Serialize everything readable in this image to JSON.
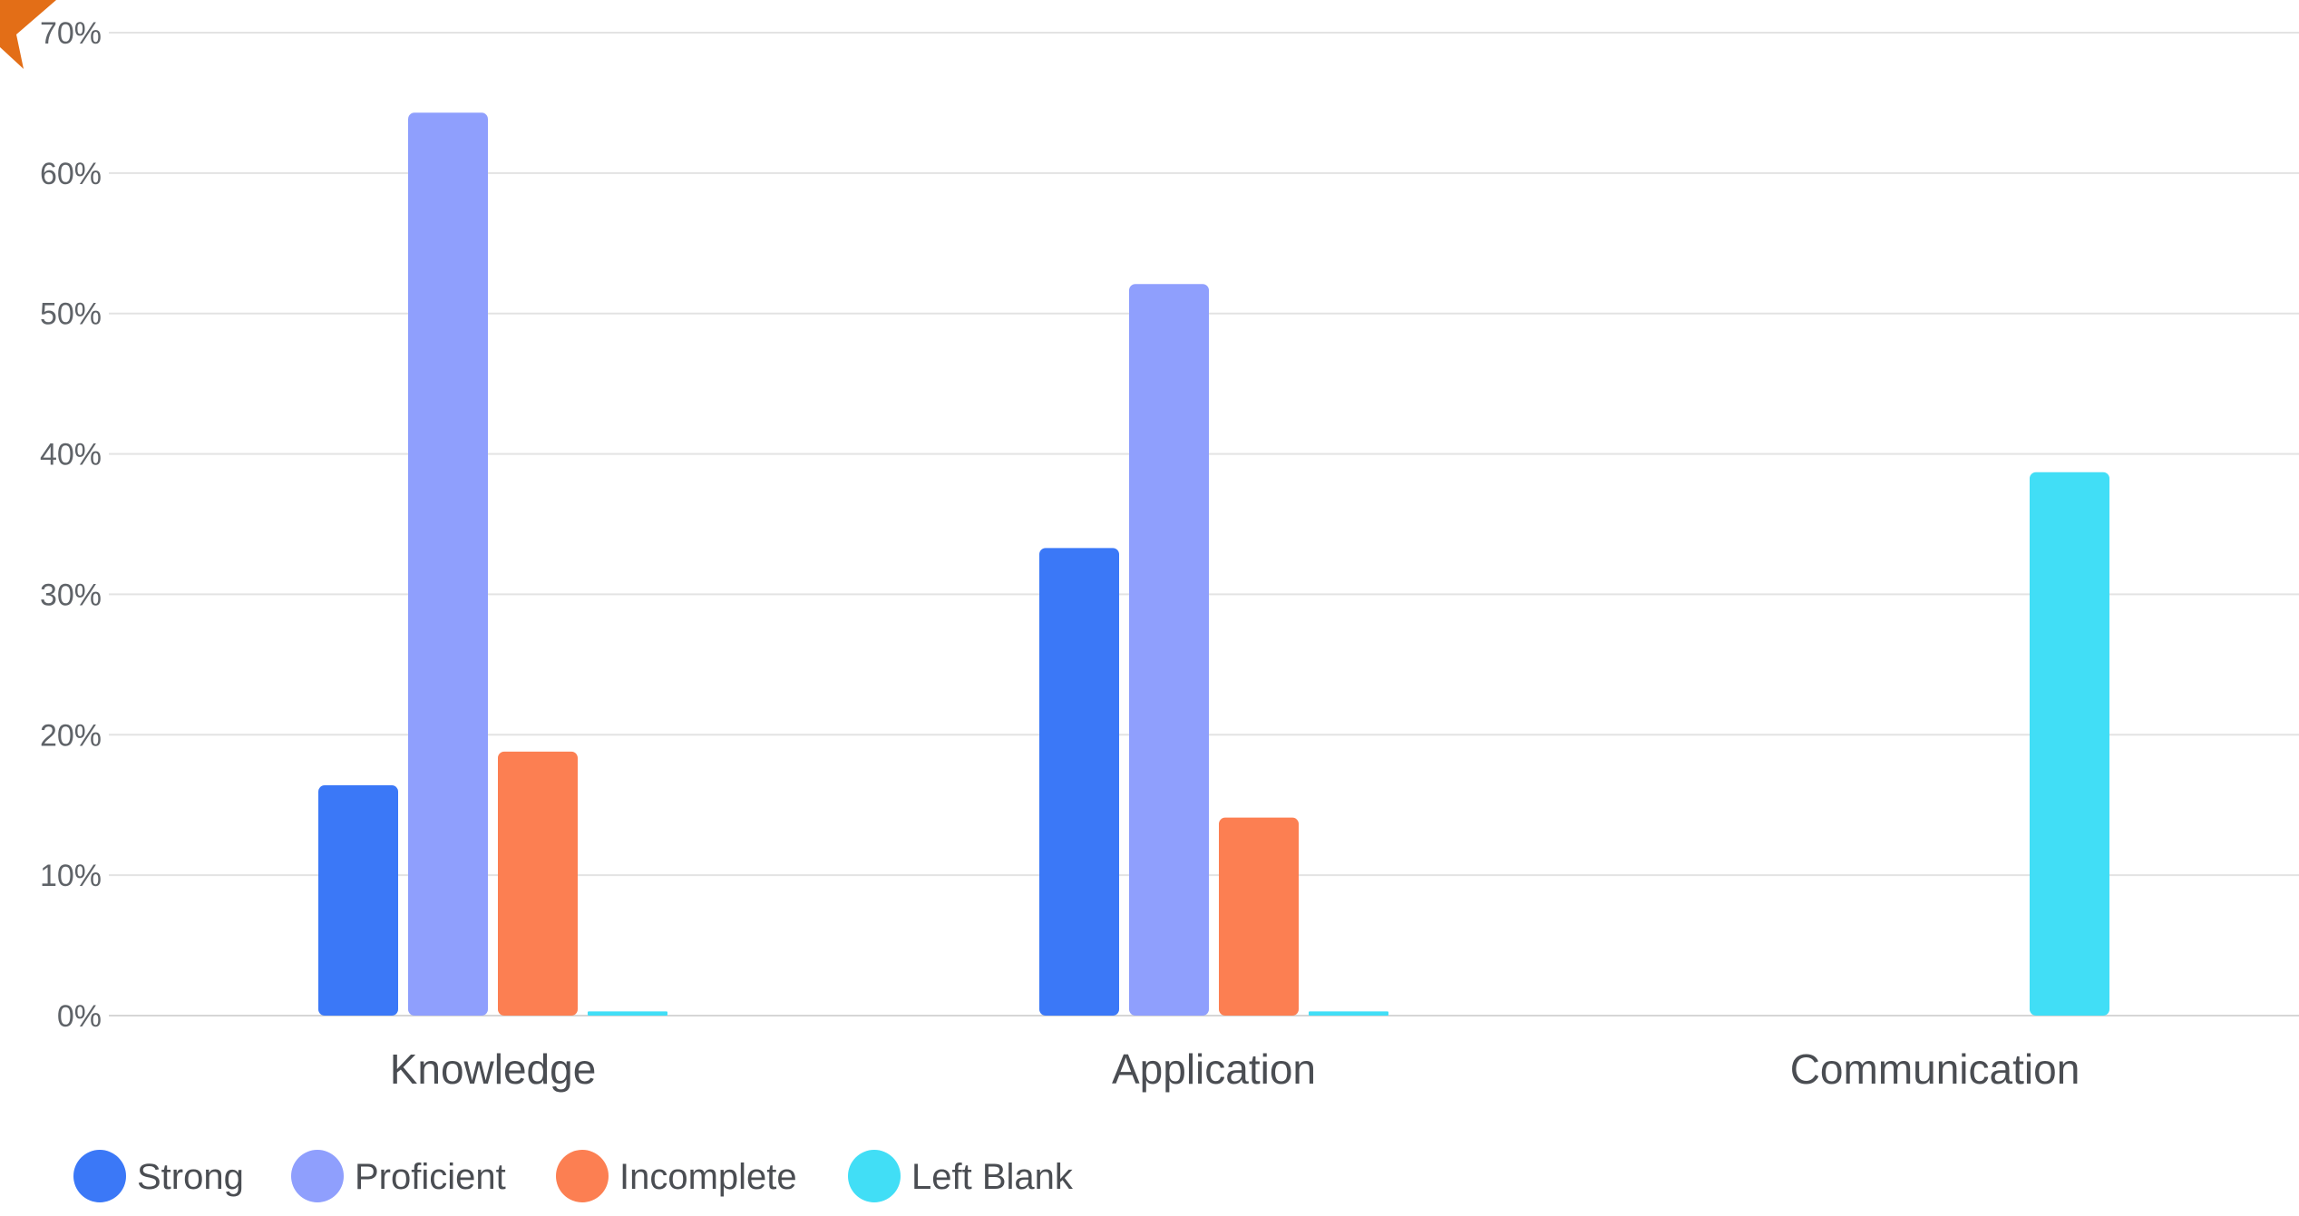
{
  "chart_data": {
    "type": "bar",
    "categories": [
      "Knowledge",
      "Application",
      "Communication"
    ],
    "series": [
      {
        "name": "Strong",
        "color": "#3b78f7",
        "values": [
          16.4,
          33.3,
          null
        ]
      },
      {
        "name": "Proficient",
        "color": "#8f9ffd",
        "values": [
          64.3,
          52.1,
          null
        ]
      },
      {
        "name": "Incomplete",
        "color": "#fc7f52",
        "values": [
          18.8,
          14.1,
          null
        ]
      },
      {
        "name": "Left Blank",
        "color": "#41def6",
        "values": [
          0.3,
          0.3,
          38.7
        ]
      }
    ],
    "ylim": [
      0,
      70
    ],
    "yticks": [
      0,
      10,
      20,
      30,
      40,
      50,
      60,
      70
    ],
    "ytick_labels": [
      "0%",
      "10%",
      "20%",
      "30%",
      "40%",
      "50%",
      "60%",
      "70%"
    ],
    "grid": true,
    "legend_position": "bottom-left",
    "corner_mark_color": "#e36e17"
  }
}
